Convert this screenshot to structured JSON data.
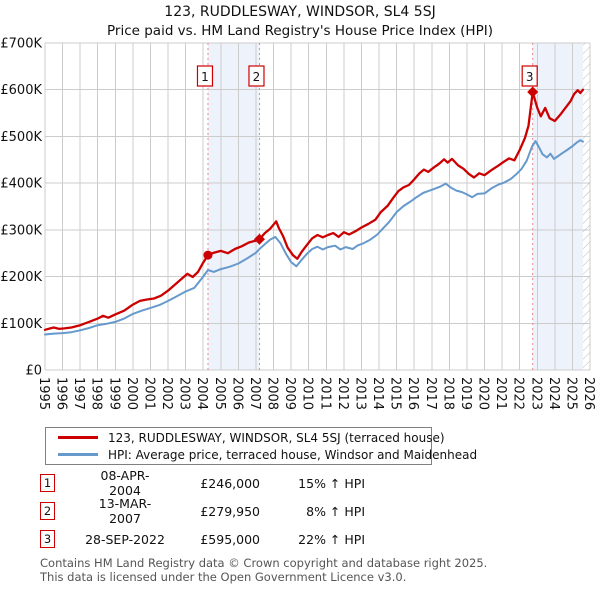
{
  "header": {
    "title": "123, RUDDLESWAY, WINDSOR, SL4 5SJ",
    "subtitle": "Price paid vs. HM Land Registry's House Price Index (HPI)"
  },
  "chart_data": {
    "type": "line",
    "title": "123, RUDDLESWAY, WINDSOR, SL4 5SJ",
    "subtitle": "Price paid vs. HM Land Registry's House Price Index (HPI)",
    "x_axis": {
      "tick_years": [
        1995,
        1996,
        1997,
        1998,
        1999,
        2000,
        2001,
        2002,
        2003,
        2004,
        2005,
        2006,
        2007,
        2008,
        2009,
        2010,
        2011,
        2012,
        2013,
        2014,
        2015,
        2016,
        2017,
        2018,
        2019,
        2020,
        2021,
        2022,
        2023,
        2024,
        2025,
        2026
      ],
      "min": 1995,
      "max": 2026
    },
    "y_axis": {
      "tick_values_k": [
        0,
        100,
        200,
        300,
        400,
        500,
        600,
        700
      ],
      "tick_labels": [
        "£0",
        "£100K",
        "£200K",
        "£300K",
        "£400K",
        "£500K",
        "£600K",
        "£700K"
      ],
      "min_k": 0,
      "max_k": 700,
      "grid": true
    },
    "series": [
      {
        "name": "123, RUDDLESWAY, WINDSOR, SL4 5SJ (terraced house)",
        "color": "#cc0000",
        "width": 2.3,
        "points": [
          [
            1995.0,
            86
          ],
          [
            1995.3,
            89
          ],
          [
            1995.5,
            91
          ],
          [
            1995.8,
            88
          ],
          [
            1996.1,
            89
          ],
          [
            1996.5,
            91
          ],
          [
            1997.0,
            96
          ],
          [
            1997.5,
            103
          ],
          [
            1998.0,
            110
          ],
          [
            1998.3,
            116
          ],
          [
            1998.6,
            112
          ],
          [
            1999.0,
            119
          ],
          [
            1999.5,
            127
          ],
          [
            2000.0,
            140
          ],
          [
            2000.4,
            148
          ],
          [
            2000.8,
            151
          ],
          [
            2001.2,
            153
          ],
          [
            2001.6,
            159
          ],
          [
            2002.0,
            170
          ],
          [
            2002.4,
            183
          ],
          [
            2002.8,
            196
          ],
          [
            2003.1,
            206
          ],
          [
            2003.4,
            199
          ],
          [
            2003.7,
            210
          ],
          [
            2004.0,
            230
          ],
          [
            2004.27,
            246
          ],
          [
            2004.6,
            251
          ],
          [
            2005.0,
            255
          ],
          [
            2005.4,
            250
          ],
          [
            2005.8,
            259
          ],
          [
            2006.2,
            265
          ],
          [
            2006.6,
            273
          ],
          [
            2007.0,
            277
          ],
          [
            2007.2,
            280
          ],
          [
            2007.5,
            293
          ],
          [
            2007.8,
            302
          ],
          [
            2008.0,
            311
          ],
          [
            2008.15,
            318
          ],
          [
            2008.3,
            304
          ],
          [
            2008.55,
            286
          ],
          [
            2008.8,
            262
          ],
          [
            2009.1,
            246
          ],
          [
            2009.35,
            238
          ],
          [
            2009.6,
            253
          ],
          [
            2009.9,
            268
          ],
          [
            2010.2,
            282
          ],
          [
            2010.5,
            289
          ],
          [
            2010.8,
            284
          ],
          [
            2011.1,
            289
          ],
          [
            2011.4,
            293
          ],
          [
            2011.7,
            285
          ],
          [
            2012.0,
            295
          ],
          [
            2012.3,
            290
          ],
          [
            2012.7,
            298
          ],
          [
            2013.0,
            305
          ],
          [
            2013.4,
            313
          ],
          [
            2013.8,
            322
          ],
          [
            2014.1,
            338
          ],
          [
            2014.5,
            352
          ],
          [
            2014.8,
            368
          ],
          [
            2015.1,
            383
          ],
          [
            2015.4,
            391
          ],
          [
            2015.7,
            396
          ],
          [
            2016.0,
            408
          ],
          [
            2016.3,
            421
          ],
          [
            2016.55,
            429
          ],
          [
            2016.8,
            424
          ],
          [
            2017.1,
            433
          ],
          [
            2017.4,
            441
          ],
          [
            2017.7,
            451
          ],
          [
            2017.9,
            444
          ],
          [
            2018.15,
            452
          ],
          [
            2018.5,
            438
          ],
          [
            2018.8,
            431
          ],
          [
            2019.1,
            420
          ],
          [
            2019.4,
            412
          ],
          [
            2019.7,
            421
          ],
          [
            2020.0,
            417
          ],
          [
            2020.4,
            428
          ],
          [
            2020.8,
            438
          ],
          [
            2021.1,
            446
          ],
          [
            2021.4,
            453
          ],
          [
            2021.7,
            449
          ],
          [
            2022.0,
            471
          ],
          [
            2022.3,
            497
          ],
          [
            2022.5,
            523
          ],
          [
            2022.74,
            595
          ],
          [
            2023.0,
            561
          ],
          [
            2023.2,
            543
          ],
          [
            2023.45,
            561
          ],
          [
            2023.7,
            539
          ],
          [
            2024.0,
            533
          ],
          [
            2024.3,
            546
          ],
          [
            2024.6,
            561
          ],
          [
            2024.9,
            576
          ],
          [
            2025.1,
            591
          ],
          [
            2025.3,
            599
          ],
          [
            2025.45,
            593
          ],
          [
            2025.6,
            600
          ]
        ]
      },
      {
        "name": "HPI: Average price, terraced house, Windsor and Maidenhead",
        "color": "#6699cc",
        "width": 2.0,
        "points": [
          [
            1995.0,
            76
          ],
          [
            1995.5,
            78
          ],
          [
            1996.0,
            79
          ],
          [
            1996.5,
            81
          ],
          [
            1997.0,
            85
          ],
          [
            1997.5,
            90
          ],
          [
            1998.0,
            96
          ],
          [
            1998.5,
            99
          ],
          [
            1999.0,
            103
          ],
          [
            1999.5,
            110
          ],
          [
            2000.0,
            120
          ],
          [
            2000.5,
            127
          ],
          [
            2001.0,
            133
          ],
          [
            2001.5,
            139
          ],
          [
            2002.0,
            148
          ],
          [
            2002.5,
            158
          ],
          [
            2003.0,
            168
          ],
          [
            2003.5,
            176
          ],
          [
            2004.0,
            200
          ],
          [
            2004.27,
            214
          ],
          [
            2004.6,
            210
          ],
          [
            2005.0,
            216
          ],
          [
            2005.5,
            221
          ],
          [
            2006.0,
            228
          ],
          [
            2006.5,
            239
          ],
          [
            2007.0,
            251
          ],
          [
            2007.2,
            259
          ],
          [
            2007.5,
            269
          ],
          [
            2007.8,
            279
          ],
          [
            2008.1,
            285
          ],
          [
            2008.4,
            271
          ],
          [
            2008.7,
            249
          ],
          [
            2009.0,
            231
          ],
          [
            2009.3,
            222
          ],
          [
            2009.6,
            236
          ],
          [
            2009.9,
            249
          ],
          [
            2010.2,
            259
          ],
          [
            2010.5,
            264
          ],
          [
            2010.8,
            258
          ],
          [
            2011.1,
            263
          ],
          [
            2011.5,
            266
          ],
          [
            2011.8,
            258
          ],
          [
            2012.1,
            263
          ],
          [
            2012.5,
            259
          ],
          [
            2012.8,
            267
          ],
          [
            2013.1,
            271
          ],
          [
            2013.5,
            279
          ],
          [
            2013.9,
            290
          ],
          [
            2014.2,
            302
          ],
          [
            2014.6,
            318
          ],
          [
            2015.0,
            338
          ],
          [
            2015.4,
            351
          ],
          [
            2015.8,
            361
          ],
          [
            2016.1,
            369
          ],
          [
            2016.5,
            379
          ],
          [
            2016.8,
            383
          ],
          [
            2017.1,
            387
          ],
          [
            2017.5,
            393
          ],
          [
            2017.8,
            399
          ],
          [
            2018.1,
            390
          ],
          [
            2018.4,
            384
          ],
          [
            2018.7,
            381
          ],
          [
            2019.0,
            376
          ],
          [
            2019.3,
            370
          ],
          [
            2019.6,
            377
          ],
          [
            2020.0,
            378
          ],
          [
            2020.4,
            389
          ],
          [
            2020.8,
            397
          ],
          [
            2021.1,
            401
          ],
          [
            2021.5,
            409
          ],
          [
            2021.8,
            419
          ],
          [
            2022.1,
            430
          ],
          [
            2022.4,
            448
          ],
          [
            2022.7,
            478
          ],
          [
            2022.9,
            490
          ],
          [
            2023.1,
            477
          ],
          [
            2023.3,
            462
          ],
          [
            2023.55,
            455
          ],
          [
            2023.75,
            463
          ],
          [
            2023.95,
            452
          ],
          [
            2024.15,
            457
          ],
          [
            2024.45,
            465
          ],
          [
            2024.7,
            471
          ],
          [
            2025.0,
            479
          ],
          [
            2025.25,
            487
          ],
          [
            2025.45,
            492
          ],
          [
            2025.6,
            489
          ]
        ]
      }
    ],
    "sales": [
      {
        "label": "1",
        "year": 2004.27,
        "price_k": 246,
        "marker": "circle"
      },
      {
        "label": "2",
        "year": 2007.2,
        "price_k": 280,
        "marker": "diamond"
      },
      {
        "label": "3",
        "year": 2022.74,
        "price_k": 595,
        "marker": "diamond"
      }
    ],
    "shaded_regions": [
      [
        2004.27,
        2007.2
      ],
      [
        2022.74,
        2025.6
      ]
    ],
    "hatch_region": [
      2025.6,
      2026
    ],
    "colors": {
      "grid": "#cccccc",
      "shade": "#eef2fb",
      "dashed": "#ee8888",
      "hatch": "#bbbbbb",
      "marker_box_border": "#cc0000",
      "axis_text": "#111111"
    },
    "legend_position": "bottom"
  },
  "legend": {
    "items": [
      {
        "label": "123, RUDDLESWAY, WINDSOR, SL4 5SJ (terraced house)",
        "color": "#cc0000"
      },
      {
        "label": "HPI: Average price, terraced house, Windsor and Maidenhead",
        "color": "#6699cc"
      }
    ]
  },
  "table": {
    "rows": [
      {
        "num": "1",
        "date": "08-APR-2004",
        "price": "£246,000",
        "vs_hpi": "15% ↑ HPI"
      },
      {
        "num": "2",
        "date": "13-MAR-2007",
        "price": "£279,950",
        "vs_hpi": "8% ↑ HPI"
      },
      {
        "num": "3",
        "date": "28-SEP-2022",
        "price": "£595,000",
        "vs_hpi": "22% ↑ HPI"
      }
    ]
  },
  "footer": {
    "line1": "Contains HM Land Registry data © Crown copyright and database right 2025.",
    "line2": "This data is licensed under the Open Government Licence v3.0."
  }
}
